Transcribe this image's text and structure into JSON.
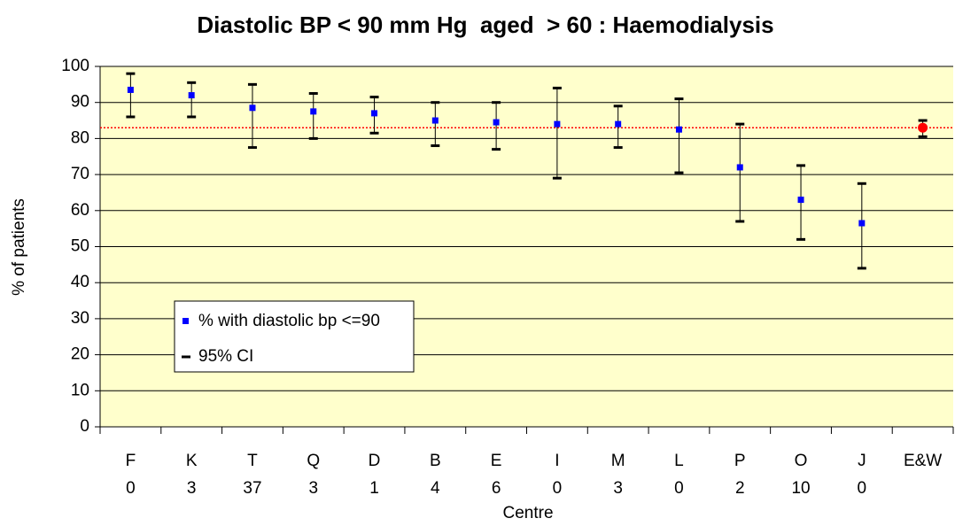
{
  "chart_data": {
    "type": "errorbar",
    "title": "Diastolic BP < 90 mm Hg  aged  > 60 : Haemodialysis",
    "xlabel": "Centre",
    "ylabel": "% of patients",
    "categories": [
      "F",
      "K",
      "T",
      "Q",
      "D",
      "B",
      "E",
      "I",
      "M",
      "L",
      "P",
      "O",
      "J",
      "E&W"
    ],
    "category_counts": [
      0,
      3,
      37,
      3,
      1,
      4,
      6,
      0,
      3,
      0,
      2,
      10,
      0,
      null
    ],
    "series": [
      {
        "name": "% with diastolic bp <=90",
        "color": "#0000ff",
        "values": [
          93.5,
          92,
          88.5,
          87.5,
          87,
          85,
          84.5,
          84,
          84,
          82.5,
          72,
          63,
          56.5,
          83
        ],
        "point_colors": [
          "#0000ff",
          "#0000ff",
          "#0000ff",
          "#0000ff",
          "#0000ff",
          "#0000ff",
          "#0000ff",
          "#0000ff",
          "#0000ff",
          "#0000ff",
          "#0000ff",
          "#0000ff",
          "#0000ff",
          "#ff0000"
        ]
      }
    ],
    "ci": {
      "name": "95% CI",
      "color": "#000000",
      "lower": [
        86,
        86,
        77.5,
        80,
        81.5,
        78,
        77,
        69,
        77.5,
        70.5,
        57,
        52,
        44,
        80.5
      ],
      "upper": [
        98,
        95.5,
        95,
        92.5,
        91.5,
        90,
        90,
        94,
        89,
        91,
        84,
        72.5,
        67.5,
        85
      ]
    },
    "reference_line": {
      "value": 83,
      "color": "#ff0000"
    },
    "ylim": [
      0,
      100
    ],
    "yticks": [
      0,
      10,
      20,
      30,
      40,
      50,
      60,
      70,
      80,
      90,
      100
    ],
    "grid": true,
    "background": "#ffffcc"
  }
}
